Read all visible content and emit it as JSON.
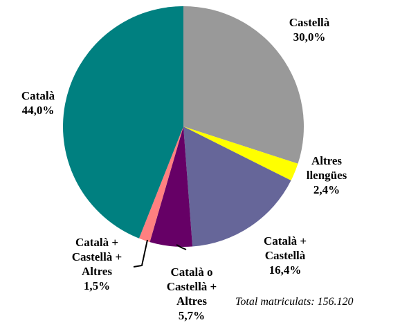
{
  "chart_data": {
    "type": "pie",
    "categories": [
      "Castellà",
      "Altres llengües",
      "Català + Castellà",
      "Català o Castellà + Altres",
      "Català + Castellà + Altres",
      "Català"
    ],
    "values": [
      30.0,
      2.4,
      16.4,
      5.7,
      1.5,
      44.0
    ],
    "value_labels": [
      "30,0%",
      "2,4%",
      "16,4%",
      "5,7%",
      "1,5%",
      "44,0%"
    ],
    "colors": [
      "#999999",
      "#ffff00",
      "#666699",
      "#660066",
      "#ff8080",
      "#008080"
    ],
    "annotation": "Total  matriculats: 156.120"
  }
}
